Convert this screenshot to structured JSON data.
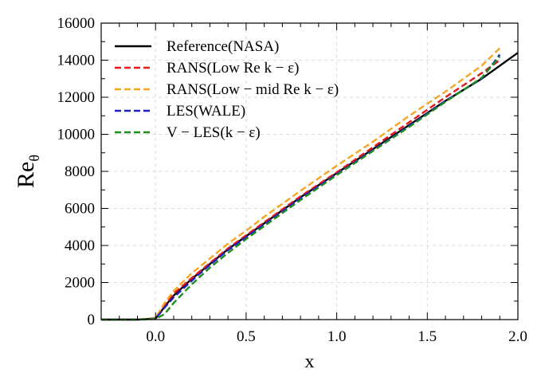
{
  "chart_data": {
    "type": "line",
    "xlabel": "x",
    "ylabel_base": "Re",
    "ylabel_sub": "θ",
    "xlim": [
      -0.3,
      2.0
    ],
    "ylim": [
      0,
      16000
    ],
    "xticks": [
      0.0,
      0.5,
      1.0,
      1.5,
      2.0
    ],
    "xtick_labels": [
      "0.0",
      "0.5",
      "1.0",
      "1.5",
      "2.0"
    ],
    "yticks": [
      0,
      2000,
      4000,
      6000,
      8000,
      10000,
      12000,
      14000,
      16000
    ],
    "ytick_labels": [
      "0",
      "2000",
      "4000",
      "6000",
      "8000",
      "10000",
      "12000",
      "14000",
      "16000"
    ],
    "grid": true,
    "legend_position": "top-left",
    "series": [
      {
        "name": "Reference(NASA)",
        "color": "#000000",
        "dashed": false,
        "x": [
          -0.3,
          -0.2,
          -0.1,
          0.0,
          0.02,
          0.05,
          0.1,
          0.2,
          0.3,
          0.4,
          0.5,
          0.6,
          0.8,
          1.0,
          1.2,
          1.4,
          1.6,
          1.8,
          2.0
        ],
        "y": [
          0,
          0,
          0,
          50,
          300,
          700,
          1300,
          2200,
          3000,
          3800,
          4500,
          5200,
          6600,
          7900,
          9200,
          10500,
          11800,
          13000,
          14400
        ]
      },
      {
        "name": "RANS(Low Re k − ε)",
        "color": "#e31a1c",
        "dashed": true,
        "x": [
          -0.3,
          -0.2,
          -0.1,
          0.0,
          0.05,
          0.1,
          0.2,
          0.3,
          0.4,
          0.5,
          0.6,
          0.8,
          1.0,
          1.2,
          1.4,
          1.6,
          1.8,
          1.9
        ],
        "y": [
          0,
          0,
          0,
          80,
          800,
          1400,
          2250,
          3050,
          3850,
          4550,
          5250,
          6650,
          7950,
          9300,
          10650,
          12000,
          13300,
          14000
        ]
      },
      {
        "name": "RANS(Low − mid Re k − ε)",
        "color": "#f5a623",
        "dashed": true,
        "x": [
          -0.3,
          -0.2,
          -0.1,
          0.0,
          0.05,
          0.1,
          0.2,
          0.3,
          0.4,
          0.5,
          0.6,
          0.8,
          1.0,
          1.2,
          1.4,
          1.6,
          1.8,
          1.9
        ],
        "y": [
          0,
          0,
          0,
          100,
          900,
          1550,
          2500,
          3300,
          4100,
          4800,
          5550,
          6950,
          8300,
          9600,
          11000,
          12300,
          13700,
          14650
        ]
      },
      {
        "name": "LES(WALE)",
        "color": "#1f1fbf",
        "dashed": true,
        "x": [
          -0.3,
          -0.2,
          -0.1,
          0.0,
          0.05,
          0.1,
          0.2,
          0.3,
          0.4,
          0.5,
          0.6,
          0.8,
          1.0,
          1.2,
          1.4,
          1.6,
          1.8,
          1.9
        ],
        "y": [
          0,
          0,
          0,
          50,
          650,
          1200,
          2100,
          2950,
          3750,
          4450,
          5150,
          6550,
          7850,
          9150,
          10450,
          11800,
          13000,
          14300
        ]
      },
      {
        "name": "V − LES(k − ε)",
        "color": "#1e8c1e",
        "dashed": true,
        "x": [
          -0.3,
          -0.2,
          -0.1,
          0.0,
          0.05,
          0.1,
          0.2,
          0.3,
          0.4,
          0.5,
          0.6,
          0.8,
          1.0,
          1.2,
          1.4,
          1.6,
          1.8,
          1.9
        ],
        "y": [
          0,
          0,
          0,
          30,
          300,
          900,
          1900,
          2800,
          3600,
          4350,
          5050,
          6450,
          7800,
          9100,
          10400,
          11750,
          13050,
          14200
        ]
      }
    ]
  }
}
